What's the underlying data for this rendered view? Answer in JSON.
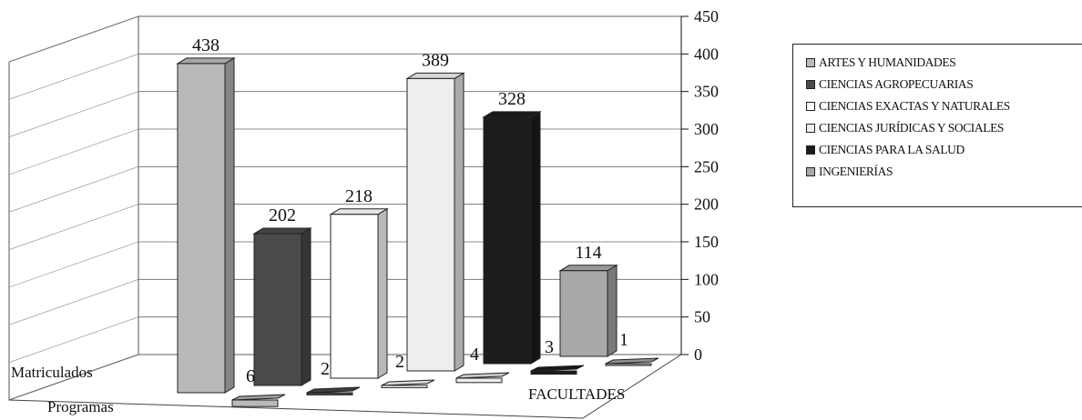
{
  "chart_data": {
    "type": "bar",
    "xlabel": "FACULTADES",
    "ylim": [
      0,
      450
    ],
    "y_ticks": [
      "0",
      "50",
      "100",
      "150",
      "200",
      "250",
      "300",
      "350",
      "400",
      "450"
    ],
    "grid": true,
    "legend_position": "right",
    "series_rows": [
      "Matriculados",
      "Programas"
    ],
    "categories": [
      "ARTES Y HUMANIDADES",
      "CIENCIAS AGROPECUARIAS",
      "CIENCIAS EXACTAS Y NATURALES",
      "CIENCIAS JURÍDICAS Y SOCIALES",
      "CIENCIAS PARA LA SALUD",
      "INGENIERÍAS"
    ],
    "series": [
      {
        "name": "Matriculados",
        "values": [
          438,
          202,
          218,
          389,
          328,
          114
        ]
      },
      {
        "name": "Programas",
        "values": [
          6,
          2,
          2,
          4,
          3,
          1
        ]
      }
    ],
    "category_colors": [
      "#b9b9b9",
      "#4a4a4a",
      "#ffffff",
      "#eeeeee",
      "#1c1c1c",
      "#a9a9a9"
    ],
    "matriculados_labels": [
      "438",
      "202",
      "218",
      "389",
      "328",
      "114"
    ],
    "programas_labels": [
      "6",
      "2",
      "2",
      "4",
      "3",
      "1"
    ]
  }
}
